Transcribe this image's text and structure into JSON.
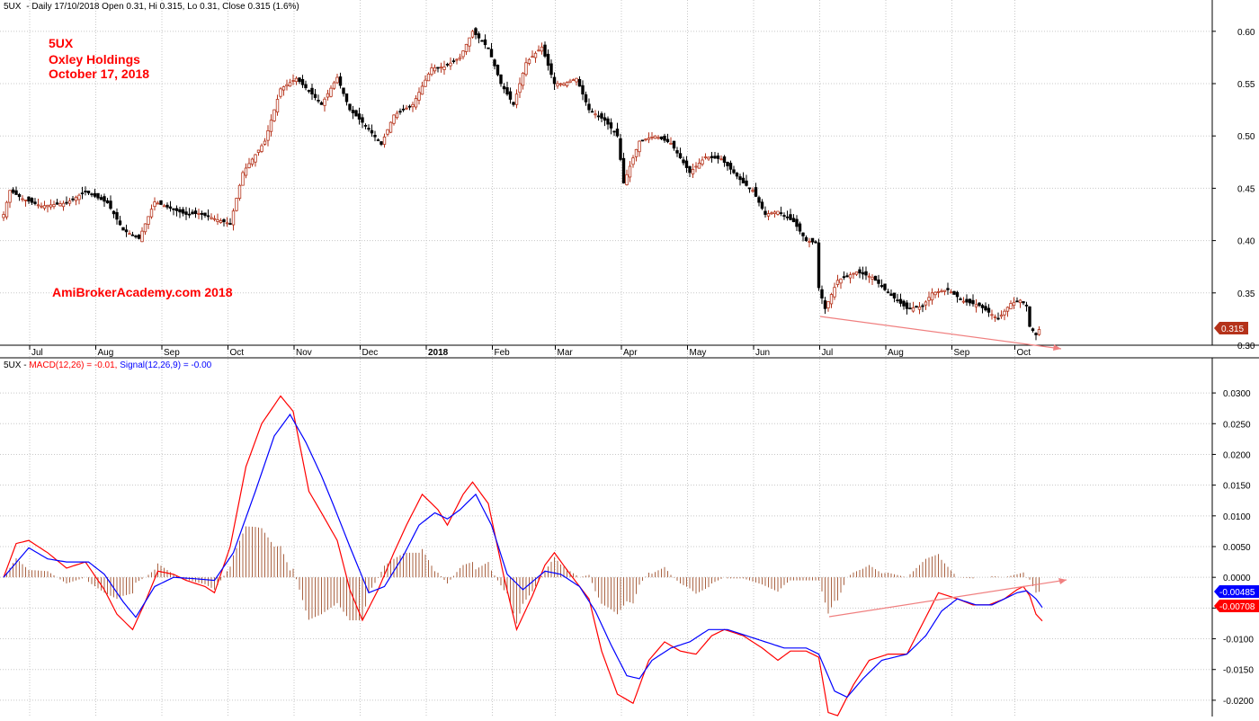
{
  "colors": {
    "up": "#b5321a",
    "down": "#000000",
    "macd": "#ff0000",
    "signal": "#0000ff",
    "histogram": "#a0522d",
    "annotation": "#ff0000",
    "trendline": "#f08080",
    "grid": "#c8c8c8"
  },
  "chart_data": [
    {
      "type": "candlestick",
      "header": {
        "symbol": "5UX",
        "text": "- Daily 17/10/2018 Open 0.31, Hi 0.315, Lo 0.31, Close 0.315 (1.6%)"
      },
      "annotations": [
        "5UX",
        "Oxley Holdings",
        "October 17, 2018"
      ],
      "watermark": "AmiBrokerAcademy.com  2018",
      "last_price_label": "0.315",
      "ylim": [
        0.3,
        0.605
      ],
      "yticks": [
        "0.60",
        "0.55",
        "0.50",
        "0.45",
        "0.40",
        "0.35",
        "0.30"
      ],
      "xticks": [
        {
          "label": "Jul",
          "index": 10
        },
        {
          "label": "Aug",
          "index": 31
        },
        {
          "label": "Sep",
          "index": 52
        },
        {
          "label": "Oct",
          "index": 73
        },
        {
          "label": "Nov",
          "index": 94
        },
        {
          "label": "Dec",
          "index": 115
        },
        {
          "label": "2018",
          "index": 136,
          "bold": true
        },
        {
          "label": "Feb",
          "index": 157
        },
        {
          "label": "Mar",
          "index": 177
        },
        {
          "label": "Apr",
          "index": 198
        },
        {
          "label": "May",
          "index": 219
        },
        {
          "label": "Jun",
          "index": 240
        },
        {
          "label": "Jul",
          "index": 261
        },
        {
          "label": "Aug",
          "index": 282
        },
        {
          "label": "Sep",
          "index": 303
        },
        {
          "label": "Oct",
          "index": 323
        }
      ],
      "count": 330,
      "anchors": [
        [
          0,
          0.425
        ],
        [
          2,
          0.448
        ],
        [
          6,
          0.44
        ],
        [
          12,
          0.433
        ],
        [
          20,
          0.436
        ],
        [
          26,
          0.447
        ],
        [
          33,
          0.436
        ],
        [
          38,
          0.41
        ],
        [
          43,
          0.402
        ],
        [
          48,
          0.437
        ],
        [
          52,
          0.432
        ],
        [
          58,
          0.425
        ],
        [
          62,
          0.426
        ],
        [
          72,
          0.416
        ],
        [
          76,
          0.465
        ],
        [
          83,
          0.495
        ],
        [
          88,
          0.545
        ],
        [
          93,
          0.555
        ],
        [
          98,
          0.54
        ],
        [
          101,
          0.53
        ],
        [
          106,
          0.556
        ],
        [
          110,
          0.525
        ],
        [
          115,
          0.51
        ],
        [
          120,
          0.492
        ],
        [
          124,
          0.52
        ],
        [
          130,
          0.53
        ],
        [
          136,
          0.565
        ],
        [
          140,
          0.566
        ],
        [
          145,
          0.575
        ],
        [
          149,
          0.6
        ],
        [
          154,
          0.584
        ],
        [
          158,
          0.55
        ],
        [
          162,
          0.53
        ],
        [
          166,
          0.57
        ],
        [
          171,
          0.585
        ],
        [
          175,
          0.55
        ],
        [
          178,
          0.55
        ],
        [
          182,
          0.555
        ],
        [
          186,
          0.525
        ],
        [
          191,
          0.515
        ],
        [
          195,
          0.5
        ],
        [
          197,
          0.455
        ],
        [
          202,
          0.495
        ],
        [
          207,
          0.5
        ],
        [
          212,
          0.493
        ],
        [
          218,
          0.465
        ],
        [
          223,
          0.48
        ],
        [
          228,
          0.478
        ],
        [
          235,
          0.455
        ],
        [
          238,
          0.448
        ],
        [
          242,
          0.425
        ],
        [
          246,
          0.428
        ],
        [
          251,
          0.418
        ],
        [
          255,
          0.4
        ],
        [
          258,
          0.398
        ],
        [
          259,
          0.355
        ],
        [
          261,
          0.335
        ],
        [
          265,
          0.362
        ],
        [
          271,
          0.37
        ],
        [
          276,
          0.365
        ],
        [
          281,
          0.35
        ],
        [
          287,
          0.335
        ],
        [
          292,
          0.337
        ],
        [
          295,
          0.35
        ],
        [
          300,
          0.353
        ],
        [
          305,
          0.342
        ],
        [
          310,
          0.338
        ],
        [
          316,
          0.325
        ],
        [
          320,
          0.34
        ],
        [
          323,
          0.343
        ],
        [
          325,
          0.338
        ],
        [
          326,
          0.318
        ],
        [
          328,
          0.31
        ],
        [
          329,
          0.315
        ]
      ]
    },
    {
      "type": "line",
      "header": {
        "prefix": "5UX - ",
        "macd_label": "MACD(12,26) = -0.01, ",
        "signal_label": "Signal(12,26,9) = -0.00"
      },
      "ylim": [
        -0.0225,
        0.0325
      ],
      "yticks": [
        "0.0300",
        "0.0250",
        "0.0200",
        "0.0150",
        "0.0100",
        "0.0050",
        "0.0000",
        "-0.0050",
        "-0.0100",
        "-0.0150",
        "-0.0200"
      ],
      "macd_value_label": "-0.00708",
      "signal_value_label": "-0.00485",
      "series": [
        {
          "name": "MACD(12,26)",
          "anchors": [
            [
              0,
              0.0
            ],
            [
              4,
              0.0055
            ],
            [
              8,
              0.006
            ],
            [
              14,
              0.004
            ],
            [
              20,
              0.0015
            ],
            [
              26,
              0.0025
            ],
            [
              32,
              -0.002
            ],
            [
              36,
              -0.006
            ],
            [
              41,
              -0.0085
            ],
            [
              45,
              -0.004
            ],
            [
              49,
              0.001
            ],
            [
              54,
              0.0005
            ],
            [
              58,
              -0.0005
            ],
            [
              64,
              -0.0015
            ],
            [
              67,
              -0.0025
            ],
            [
              72,
              0.005
            ],
            [
              77,
              0.018
            ],
            [
              82,
              0.025
            ],
            [
              88,
              0.0295
            ],
            [
              92,
              0.027
            ],
            [
              97,
              0.014
            ],
            [
              101,
              0.0105
            ],
            [
              106,
              0.006
            ],
            [
              110,
              -0.002
            ],
            [
              114,
              -0.007
            ],
            [
              119,
              -0.002
            ],
            [
              124,
              0.004
            ],
            [
              128,
              0.0085
            ],
            [
              133,
              0.0135
            ],
            [
              138,
              0.011
            ],
            [
              141,
              0.0085
            ],
            [
              146,
              0.0135
            ],
            [
              149,
              0.0155
            ],
            [
              154,
              0.012
            ],
            [
              159,
              0.0
            ],
            [
              163,
              -0.0085
            ],
            [
              168,
              -0.003
            ],
            [
              172,
              0.002
            ],
            [
              175,
              0.004
            ],
            [
              180,
              0.0005
            ],
            [
              186,
              -0.0035
            ],
            [
              190,
              -0.012
            ],
            [
              195,
              -0.019
            ],
            [
              200,
              -0.0205
            ],
            [
              205,
              -0.0135
            ],
            [
              210,
              -0.0105
            ],
            [
              215,
              -0.012
            ],
            [
              220,
              -0.0125
            ],
            [
              225,
              -0.0095
            ],
            [
              229,
              -0.0085
            ],
            [
              235,
              -0.0095
            ],
            [
              241,
              -0.0115
            ],
            [
              246,
              -0.0135
            ],
            [
              250,
              -0.012
            ],
            [
              255,
              -0.012
            ],
            [
              259,
              -0.013
            ],
            [
              262,
              -0.022
            ],
            [
              265,
              -0.0225
            ],
            [
              270,
              -0.0175
            ],
            [
              275,
              -0.0135
            ],
            [
              281,
              -0.0125
            ],
            [
              287,
              -0.0125
            ],
            [
              292,
              -0.0075
            ],
            [
              297,
              -0.0025
            ],
            [
              303,
              -0.0035
            ],
            [
              308,
              -0.0045
            ],
            [
              313,
              -0.0045
            ],
            [
              318,
              -0.0035
            ],
            [
              322,
              -0.002
            ],
            [
              324,
              -0.0015
            ],
            [
              326,
              -0.003
            ],
            [
              328,
              -0.006
            ],
            [
              330,
              -0.0071
            ]
          ]
        },
        {
          "name": "Signal(12,26,9)",
          "anchors": [
            [
              0,
              0.0
            ],
            [
              8,
              0.0048
            ],
            [
              14,
              0.003
            ],
            [
              20,
              0.0025
            ],
            [
              27,
              0.0025
            ],
            [
              32,
              0.0005
            ],
            [
              38,
              -0.004
            ],
            [
              42,
              -0.0065
            ],
            [
              48,
              -0.0015
            ],
            [
              54,
              0.0
            ],
            [
              60,
              -0.0002
            ],
            [
              67,
              -0.0005
            ],
            [
              73,
              0.004
            ],
            [
              80,
              0.014
            ],
            [
              86,
              0.023
            ],
            [
              91,
              0.0265
            ],
            [
              96,
              0.022
            ],
            [
              101,
              0.0165
            ],
            [
              105,
              0.0115
            ],
            [
              110,
              0.005
            ],
            [
              116,
              -0.0025
            ],
            [
              121,
              -0.0015
            ],
            [
              127,
              0.0035
            ],
            [
              132,
              0.0085
            ],
            [
              137,
              0.0105
            ],
            [
              141,
              0.0095
            ],
            [
              145,
              0.011
            ],
            [
              150,
              0.0135
            ],
            [
              155,
              0.0085
            ],
            [
              160,
              0.0005
            ],
            [
              165,
              -0.002
            ],
            [
              172,
              0.001
            ],
            [
              177,
              0.0005
            ],
            [
              183,
              -0.0015
            ],
            [
              188,
              -0.0055
            ],
            [
              193,
              -0.011
            ],
            [
              198,
              -0.016
            ],
            [
              202,
              -0.0165
            ],
            [
              206,
              -0.0135
            ],
            [
              212,
              -0.0115
            ],
            [
              218,
              -0.0105
            ],
            [
              224,
              -0.0085
            ],
            [
              230,
              -0.0085
            ],
            [
              236,
              -0.0095
            ],
            [
              242,
              -0.0105
            ],
            [
              248,
              -0.0115
            ],
            [
              255,
              -0.0115
            ],
            [
              259,
              -0.0125
            ],
            [
              264,
              -0.0185
            ],
            [
              268,
              -0.0195
            ],
            [
              273,
              -0.0165
            ],
            [
              279,
              -0.0135
            ],
            [
              287,
              -0.0125
            ],
            [
              293,
              -0.0095
            ],
            [
              298,
              -0.0055
            ],
            [
              303,
              -0.0035
            ],
            [
              309,
              -0.0045
            ],
            [
              314,
              -0.0045
            ],
            [
              318,
              -0.0035
            ],
            [
              322,
              -0.0025
            ],
            [
              325,
              -0.0022
            ],
            [
              328,
              -0.0035
            ],
            [
              330,
              -0.0049
            ]
          ]
        }
      ]
    }
  ]
}
